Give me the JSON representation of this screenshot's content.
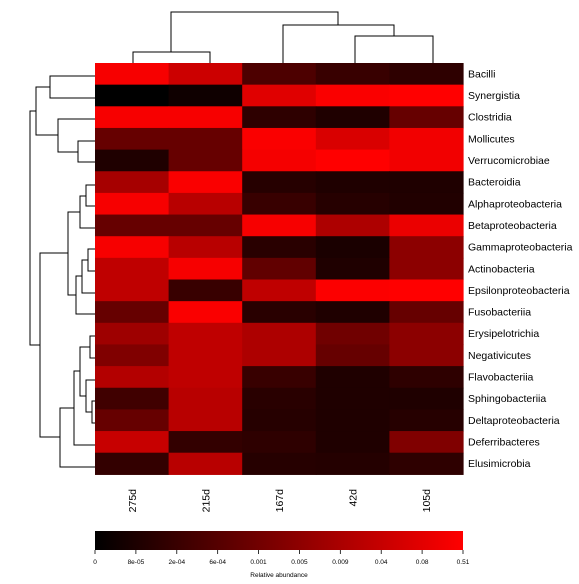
{
  "chart_data": {
    "type": "heatmap",
    "rows": [
      "Bacilli",
      "Synergistia",
      "Clostridia",
      "Mollicutes",
      "Verrucomicrobiae",
      "Bacteroidia",
      "Alphaproteobacteria",
      "Betaproteobacteria",
      "Gammaproteobacteria",
      "Actinobacteria",
      "Epsilonproteobacteria",
      "Fusobacteriia",
      "Erysipelotrichia",
      "Negativicutes",
      "Flavobacteriia",
      "Sphingobacteriia",
      "Deltaproteobacteria",
      "Deferribacteres",
      "Elusimicrobia"
    ],
    "columns": [
      "275d",
      "215d",
      "167d",
      "42d",
      "105d"
    ],
    "intensity": [
      [
        0.97,
        0.8,
        0.3,
        0.22,
        0.18
      ],
      [
        0.0,
        0.06,
        0.88,
        0.98,
        1.0
      ],
      [
        0.97,
        0.97,
        0.18,
        0.12,
        0.4
      ],
      [
        0.4,
        0.4,
        0.98,
        0.85,
        0.95
      ],
      [
        0.12,
        0.4,
        0.96,
        1.0,
        0.95
      ],
      [
        0.65,
        0.98,
        0.15,
        0.12,
        0.12
      ],
      [
        0.97,
        0.72,
        0.22,
        0.15,
        0.13
      ],
      [
        0.4,
        0.4,
        0.97,
        0.68,
        0.92
      ],
      [
        0.97,
        0.72,
        0.16,
        0.1,
        0.55
      ],
      [
        0.75,
        0.97,
        0.38,
        0.12,
        0.55
      ],
      [
        0.75,
        0.22,
        0.75,
        0.99,
        1.0
      ],
      [
        0.4,
        0.98,
        0.16,
        0.12,
        0.4
      ],
      [
        0.62,
        0.75,
        0.68,
        0.44,
        0.55
      ],
      [
        0.5,
        0.75,
        0.68,
        0.4,
        0.55
      ],
      [
        0.7,
        0.75,
        0.22,
        0.12,
        0.18
      ],
      [
        0.25,
        0.72,
        0.16,
        0.12,
        0.12
      ],
      [
        0.4,
        0.72,
        0.15,
        0.12,
        0.15
      ],
      [
        0.78,
        0.2,
        0.18,
        0.12,
        0.5
      ],
      [
        0.2,
        0.72,
        0.15,
        0.14,
        0.18
      ]
    ],
    "colorbar": {
      "ticks": [
        "0",
        "8e-05",
        "2e-04",
        "6e-04",
        "0.001",
        "0.005",
        "0.009",
        "0.04",
        "0.08",
        "0.51"
      ],
      "title": "Relative abundance",
      "colors": [
        "#000000",
        "#ff0000"
      ]
    },
    "dendrogram_rows": "present",
    "dendrogram_columns": "present"
  }
}
